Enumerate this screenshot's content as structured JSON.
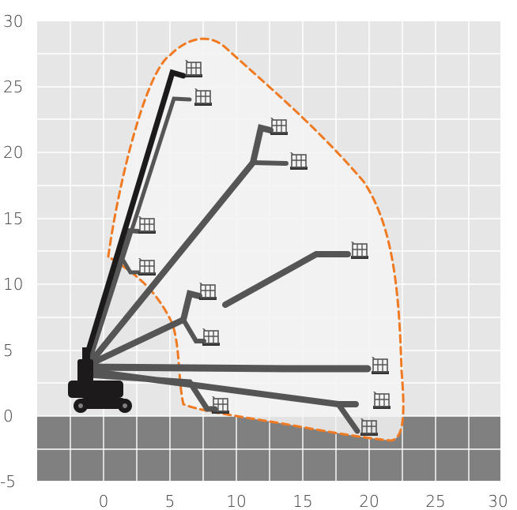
{
  "chart_data": {
    "type": "diagram",
    "title": "",
    "x_ticks": [
      "0",
      "5",
      "10",
      "15",
      "20",
      "25",
      "30"
    ],
    "y_ticks": [
      "30",
      "25",
      "20",
      "15",
      "10",
      "5",
      "0",
      "-5"
    ],
    "xlim": [
      -5,
      30
    ],
    "ylim": [
      -5,
      30
    ],
    "grid": true,
    "ground_level_m": 0,
    "working_envelope_height_max_m": 28.5,
    "working_envelope_outreach_max_m": 22.5,
    "boom_positions": [
      {
        "platform_x": 6.8,
        "platform_y": 25.9
      },
      {
        "platform_x": 7.3,
        "platform_y": 23.8
      },
      {
        "platform_x": 13.3,
        "platform_y": 21.8
      },
      {
        "platform_x": 14.4,
        "platform_y": 19.2
      },
      {
        "platform_x": 2.9,
        "platform_y": 14.0
      },
      {
        "platform_x": 3.0,
        "platform_y": 11.0
      },
      {
        "platform_x": 19.2,
        "platform_y": 12.1
      },
      {
        "platform_x": 7.6,
        "platform_y": 9.0
      },
      {
        "platform_x": 7.6,
        "platform_y": 5.5
      },
      {
        "platform_x": 20.6,
        "platform_y": 3.5
      },
      {
        "platform_x": 20.4,
        "platform_y": 0.9
      },
      {
        "platform_x": 8.5,
        "platform_y": 0.6
      },
      {
        "platform_x": 19.4,
        "platform_y": -1.2
      }
    ],
    "colors": {
      "plot_bg": "#e6e6e6",
      "grid": "#ffffff",
      "ground": "#808080",
      "envelope_fill": "#f3f3f3",
      "envelope_line": "#f07a22",
      "boom": "#555555",
      "boom_main": "#1c1a1a",
      "machine": "#1c1a1a"
    }
  }
}
